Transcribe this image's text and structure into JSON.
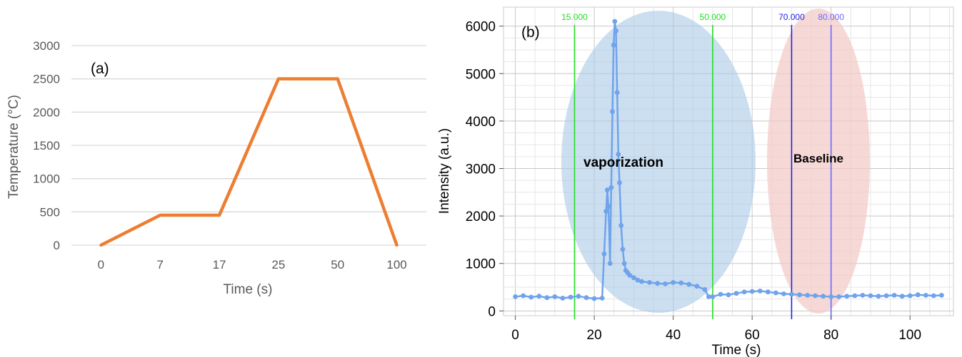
{
  "chart_data": [
    {
      "type": "line",
      "panel_label": "(a)",
      "xlabel": "Time (s)",
      "ylabel": "Temperature (°C)",
      "categories": [
        "0",
        "7",
        "17",
        "25",
        "50",
        "100"
      ],
      "values": [
        0,
        450,
        450,
        2500,
        2500,
        0
      ],
      "ylim": [
        0,
        3000
      ],
      "yticks": [
        0,
        500,
        1000,
        1500,
        2000,
        2500,
        3000
      ],
      "grid": "horizontal",
      "colors": {
        "line": "#ED7D31",
        "grid": "#D9D9D9",
        "text": "#595959"
      }
    },
    {
      "type": "scatter",
      "panel_label": "(b)",
      "xlabel": "Time (s)",
      "ylabel": "Intensity (a.u.)",
      "xlim": [
        -3,
        111
      ],
      "ylim": [
        -100,
        6400
      ],
      "xticks": [
        0,
        20,
        40,
        60,
        80,
        100
      ],
      "yticks": [
        0,
        1000,
        2000,
        3000,
        4000,
        5000,
        6000
      ],
      "grid": "on",
      "series": [
        {
          "x": [
            0,
            2,
            4,
            6,
            8,
            10,
            12,
            14,
            16,
            18,
            20,
            22,
            22.5,
            23,
            23.3,
            23.6,
            24,
            24.3,
            24.6,
            24.9,
            25.2,
            25.5,
            25.8,
            26.1,
            26.4,
            26.8,
            27.2,
            27.6,
            28,
            28.5,
            29,
            30,
            31,
            32,
            34,
            36,
            38,
            40,
            42,
            44,
            46,
            48,
            49,
            50,
            52,
            54,
            56,
            58,
            60,
            62,
            64,
            66,
            68,
            70,
            72,
            74,
            76,
            78,
            80,
            82,
            84,
            86,
            88,
            90,
            92,
            94,
            96,
            98,
            100,
            102,
            104,
            106,
            108
          ],
          "y": [
            300,
            320,
            290,
            310,
            280,
            300,
            270,
            290,
            310,
            280,
            260,
            270,
            1200,
            2100,
            2550,
            2200,
            1000,
            2600,
            4200,
            5600,
            6100,
            5900,
            4600,
            3300,
            2700,
            1800,
            1300,
            1000,
            850,
            800,
            750,
            700,
            650,
            620,
            600,
            580,
            570,
            600,
            590,
            560,
            520,
            450,
            300,
            300,
            350,
            340,
            370,
            400,
            410,
            420,
            400,
            380,
            360,
            350,
            340,
            330,
            320,
            310,
            300,
            300,
            310,
            320,
            330,
            320,
            310,
            320,
            330,
            310,
            320,
            340,
            330,
            320,
            330
          ]
        }
      ],
      "vlines": [
        {
          "x": 15,
          "label": "15.000",
          "color": "#22DD22"
        },
        {
          "x": 50,
          "label": "50.000",
          "color": "#22DD22"
        },
        {
          "x": 70,
          "label": "70.000",
          "color": "#2222DD"
        },
        {
          "x": 80,
          "label": "80.000",
          "color": "#6666FF"
        }
      ],
      "regions": [
        {
          "label": "vaporization",
          "color": "#A9C9E8"
        },
        {
          "label": "Baseline",
          "color": "#F2C9C4"
        }
      ],
      "colors": {
        "points": "#6FA3EC",
        "grid": "#D9D9D9"
      }
    }
  ]
}
